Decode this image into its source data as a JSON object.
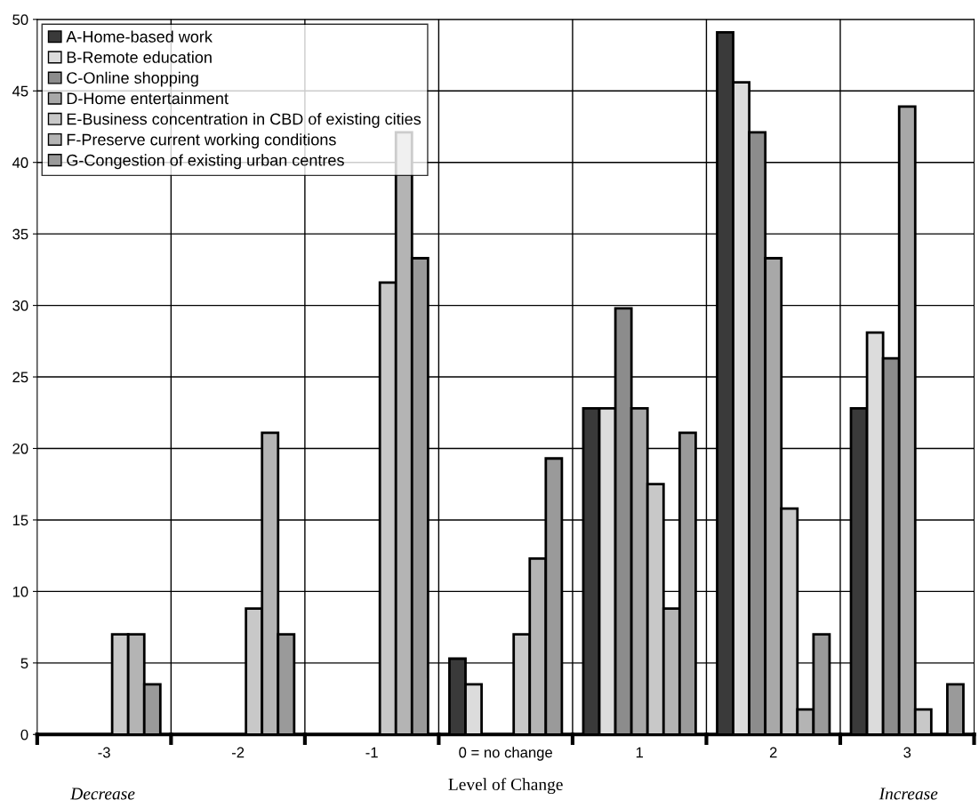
{
  "chart_data": {
    "type": "bar",
    "xlabel": "Level of Change",
    "categories": [
      "-3",
      "-2",
      "-1",
      "0 = no change",
      "1",
      "2",
      "3"
    ],
    "series": [
      {
        "name": "A-Home-based work",
        "color": "#3a3a3a",
        "values": [
          0,
          0,
          0,
          5.3,
          22.8,
          49.1,
          22.8
        ]
      },
      {
        "name": "B-Remote education",
        "color": "#dcdcdc",
        "values": [
          0,
          0,
          0,
          3.5,
          22.8,
          45.6,
          28.1
        ]
      },
      {
        "name": "C-Online shopping",
        "color": "#8c8c8c",
        "values": [
          0,
          0,
          0,
          0,
          29.8,
          42.1,
          26.3
        ]
      },
      {
        "name": "D-Home entertainment",
        "color": "#a8a8a8",
        "values": [
          0,
          0,
          0,
          0,
          22.8,
          33.3,
          43.9
        ]
      },
      {
        "name": "E-Business concentration in CBD of existing cities",
        "color": "#c8c8c8",
        "values": [
          7,
          8.8,
          31.6,
          7,
          17.5,
          15.8,
          1.75
        ]
      },
      {
        "name": "F-Preserve current working conditions",
        "color": "#b4b4b4",
        "values": [
          7,
          21.1,
          42.1,
          12.3,
          8.8,
          1.75,
          0
        ]
      },
      {
        "name": "G-Congestion of existing urban centres",
        "color": "#9a9a9a",
        "values": [
          3.5,
          7,
          33.3,
          19.3,
          21.1,
          7,
          3.5
        ]
      }
    ],
    "ylim": [
      0,
      50
    ],
    "yticks": [
      0,
      5,
      10,
      15,
      20,
      25,
      30,
      35,
      40,
      45,
      50
    ],
    "grid": true,
    "legend": "top left",
    "annotations": [
      "Decrease",
      "Increase"
    ]
  }
}
